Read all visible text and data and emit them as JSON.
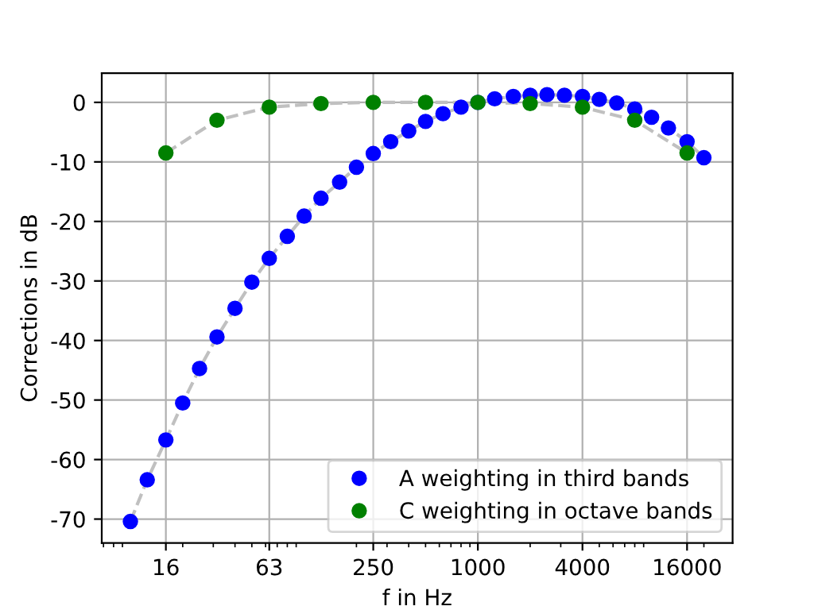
{
  "chart_data": {
    "type": "scatter",
    "xlabel": "f in Hz",
    "ylabel": "Corrections in dB",
    "log": "x",
    "grid": true,
    "legend": "bottom right",
    "marker": "circle",
    "xlim": [
      6.84,
      29260
    ],
    "ylim": [
      -74,
      4.9
    ],
    "xticks": [
      16,
      63,
      250,
      1000,
      4000,
      16000
    ],
    "yticks": [
      -70,
      -60,
      -50,
      -40,
      -30,
      -20,
      -10,
      0
    ],
    "series": [
      {
        "type": "line",
        "line_style": "dashed",
        "marker": "none",
        "color": "#c0c0c0",
        "x": [
          10,
          12.5,
          16,
          20,
          25,
          31.5,
          40,
          50,
          63,
          80,
          100,
          125,
          160,
          200,
          250,
          315,
          400,
          500,
          630,
          800,
          1000,
          1250,
          1600,
          2000,
          2500,
          3150,
          4000,
          5000,
          6300,
          8000,
          10000,
          12500,
          16000,
          20000
        ],
        "values": [
          -70.4,
          -63.4,
          -56.7,
          -50.5,
          -44.7,
          -39.4,
          -34.6,
          -30.2,
          -26.2,
          -22.5,
          -19.1,
          -16.1,
          -13.4,
          -10.9,
          -8.6,
          -6.6,
          -4.8,
          -3.2,
          -1.9,
          -0.8,
          0,
          0.6,
          1.0,
          1.2,
          1.3,
          1.2,
          1.0,
          0.5,
          -0.1,
          -1.1,
          -2.5,
          -4.3,
          -6.6,
          -9.3
        ]
      },
      {
        "type": "line",
        "line_style": "dashed",
        "marker": "none",
        "color": "#c0c0c0",
        "x": [
          16,
          31.5,
          63,
          125,
          250,
          500,
          1000,
          2000,
          4000,
          8000,
          16000
        ],
        "values": [
          -8.5,
          -3.0,
          -0.8,
          -0.2,
          0,
          0,
          0,
          -0.2,
          -0.8,
          -3.0,
          -8.5
        ]
      },
      {
        "name": "A weighting in third bands",
        "color": "#0000ff",
        "x": [
          10,
          12.5,
          16,
          20,
          25,
          31.5,
          40,
          50,
          63,
          80,
          100,
          125,
          160,
          200,
          250,
          315,
          400,
          500,
          630,
          800,
          1000,
          1250,
          1600,
          2000,
          2500,
          3150,
          4000,
          5000,
          6300,
          8000,
          10000,
          12500,
          16000,
          20000
        ],
        "values": [
          -70.4,
          -63.4,
          -56.7,
          -50.5,
          -44.7,
          -39.4,
          -34.6,
          -30.2,
          -26.2,
          -22.5,
          -19.1,
          -16.1,
          -13.4,
          -10.9,
          -8.6,
          -6.6,
          -4.8,
          -3.2,
          -1.9,
          -0.8,
          0,
          0.6,
          1.0,
          1.2,
          1.3,
          1.2,
          1.0,
          0.5,
          -0.1,
          -1.1,
          -2.5,
          -4.3,
          -6.6,
          -9.3
        ]
      },
      {
        "name": "C weighting in octave bands",
        "color": "#008000",
        "x": [
          16,
          31.5,
          63,
          125,
          250,
          500,
          1000,
          2000,
          4000,
          8000,
          16000
        ],
        "values": [
          -8.5,
          -3.0,
          -0.8,
          -0.2,
          0,
          0,
          0,
          -0.2,
          -0.8,
          -3.0,
          -8.5
        ]
      }
    ]
  }
}
